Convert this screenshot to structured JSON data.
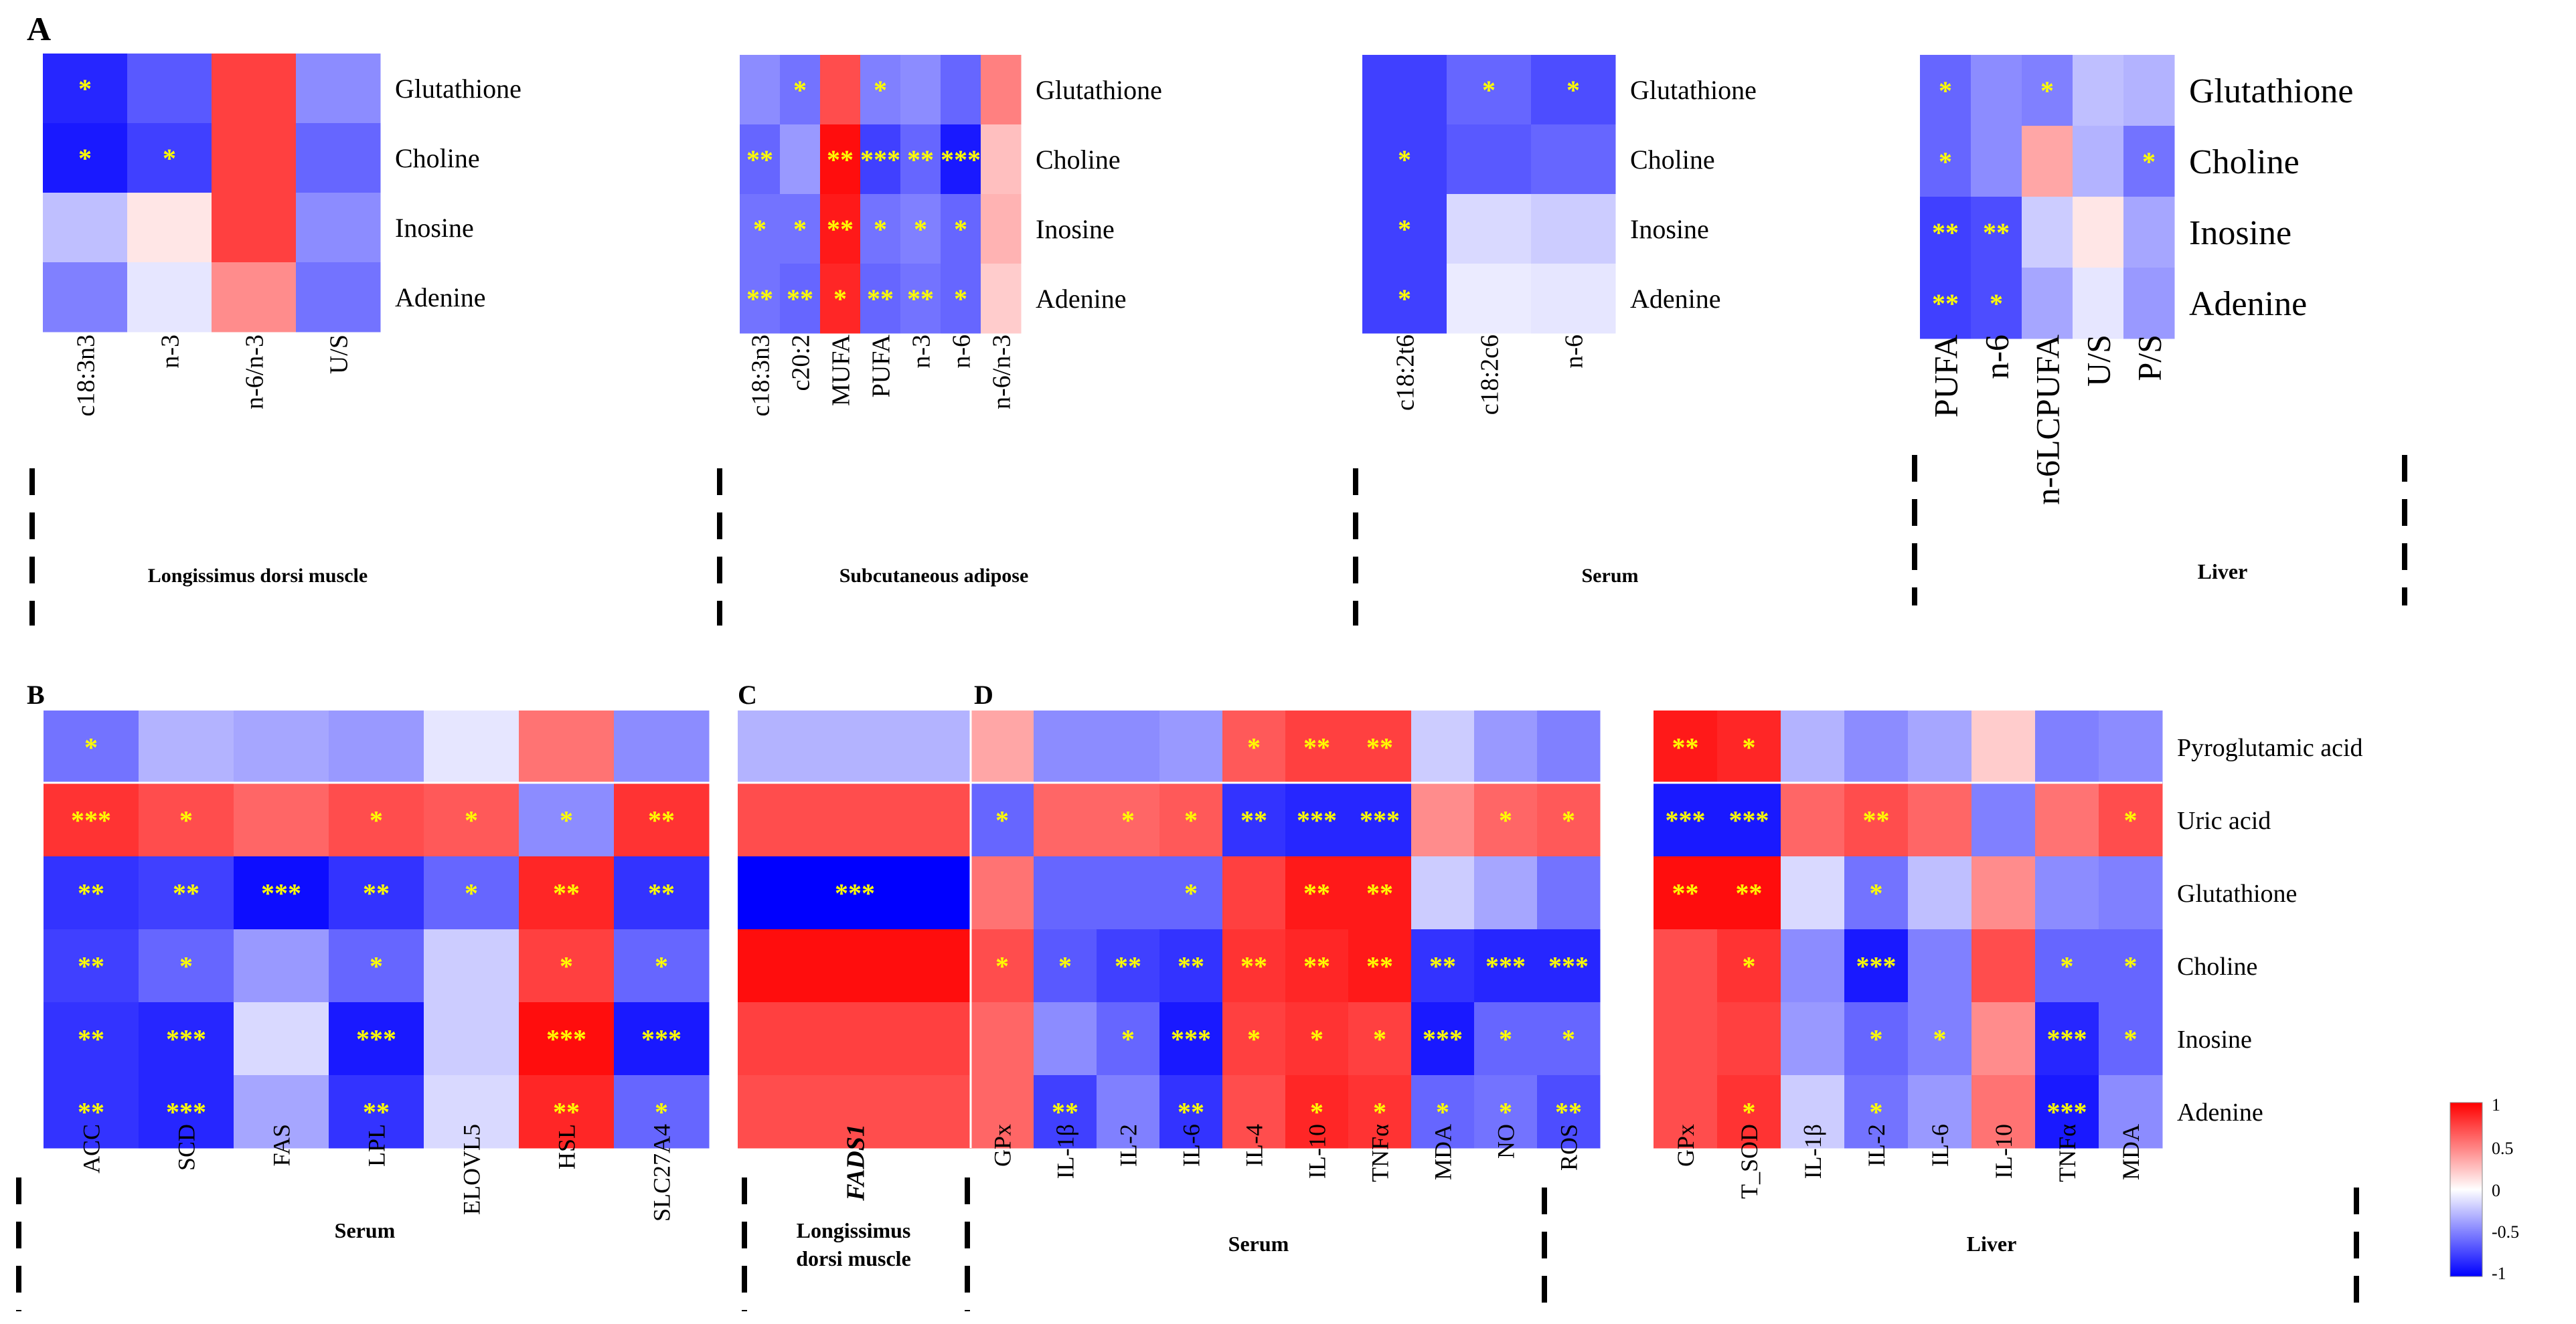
{
  "panel_letters": {
    "A": "A",
    "B": "B",
    "C": "C",
    "D": "D"
  },
  "colorbar": {
    "ticks": [
      "1",
      "0.5",
      "0",
      "-0.5",
      "-1"
    ],
    "colors": {
      "high": "#ff0000",
      "mid": "#ffffff",
      "low": "#0000ff"
    }
  },
  "star_color": "#ffff00",
  "chart_data": [
    {
      "type": "heatmap",
      "id": "A1",
      "tissue_label": "Longissimus dorsi muscle",
      "rows": [
        "Glutathione",
        "Choline",
        "Inosine",
        "Adenine"
      ],
      "columns": [
        "c18:3n3",
        "n-3",
        "n-6/n-3",
        "U/S"
      ],
      "values": [
        [
          -0.85,
          -0.65,
          0.75,
          -0.45
        ],
        [
          -0.9,
          -0.75,
          0.75,
          -0.6
        ],
        [
          -0.25,
          0.1,
          0.75,
          -0.45
        ],
        [
          -0.5,
          -0.1,
          0.45,
          -0.55
        ]
      ],
      "significance": [
        [
          "*",
          "",
          "",
          ""
        ],
        [
          "*",
          "*",
          "",
          ""
        ],
        [
          "",
          "",
          "",
          ""
        ],
        [
          "",
          "",
          "",
          ""
        ]
      ],
      "color_range": [
        -1,
        1
      ]
    },
    {
      "type": "heatmap",
      "id": "A2",
      "tissue_label": "Subcutaneous adipose",
      "rows": [
        "Glutathione",
        "Choline",
        "Inosine",
        "Adenine"
      ],
      "columns": [
        "c18:3n3",
        "c20:2",
        "MUFA",
        "PUFA",
        "n-3",
        "n-6",
        "n-6/n-3"
      ],
      "values": [
        [
          -0.45,
          -0.55,
          0.7,
          -0.5,
          -0.45,
          -0.6,
          0.5
        ],
        [
          -0.6,
          -0.4,
          0.95,
          -0.75,
          -0.6,
          -0.9,
          0.25
        ],
        [
          -0.55,
          -0.55,
          0.9,
          -0.55,
          -0.5,
          -0.6,
          0.3
        ],
        [
          -0.55,
          -0.6,
          0.85,
          -0.6,
          -0.55,
          -0.6,
          0.2
        ]
      ],
      "significance": [
        [
          "",
          "*",
          "",
          "*",
          "",
          "",
          ""
        ],
        [
          "**",
          "",
          "**",
          "***",
          "**",
          "***",
          ""
        ],
        [
          "*",
          "*",
          "**",
          "*",
          "*",
          "*",
          ""
        ],
        [
          "**",
          "**",
          "*",
          "**",
          "**",
          "*",
          ""
        ]
      ],
      "color_range": [
        -1,
        1
      ]
    },
    {
      "type": "heatmap",
      "id": "A3",
      "tissue_label": "Serum",
      "rows": [
        "Glutathione",
        "Choline",
        "Inosine",
        "Adenine"
      ],
      "columns": [
        "c18:2t6",
        "c18:2c6",
        "n-6"
      ],
      "values": [
        [
          -0.75,
          -0.6,
          -0.7
        ],
        [
          -0.75,
          -0.65,
          -0.6
        ],
        [
          -0.75,
          -0.15,
          -0.2
        ],
        [
          -0.75,
          -0.08,
          -0.1
        ]
      ],
      "significance": [
        [
          "",
          "*",
          "*"
        ],
        [
          "*",
          "",
          ""
        ],
        [
          "*",
          "",
          ""
        ],
        [
          "*",
          "",
          ""
        ]
      ],
      "color_range": [
        -1,
        1
      ]
    },
    {
      "type": "heatmap",
      "id": "A4",
      "tissue_label": "Liver",
      "rows": [
        "Glutathione",
        "Choline",
        "Inosine",
        "Adenine"
      ],
      "columns": [
        "PUFA",
        "n-6",
        "n-6LCPUFA",
        "U/S",
        "P/S"
      ],
      "values": [
        [
          -0.6,
          -0.45,
          -0.5,
          -0.25,
          -0.3
        ],
        [
          -0.6,
          -0.45,
          0.35,
          -0.3,
          -0.55
        ],
        [
          -0.75,
          -0.7,
          -0.2,
          0.1,
          -0.35
        ],
        [
          -0.75,
          -0.7,
          -0.35,
          -0.1,
          -0.4
        ]
      ],
      "significance": [
        [
          "*",
          "",
          "*",
          "",
          ""
        ],
        [
          "*",
          "",
          "",
          "",
          "*"
        ],
        [
          "**",
          "**",
          "",
          "",
          ""
        ],
        [
          "**",
          "*",
          "",
          "",
          ""
        ]
      ],
      "color_range": [
        -1,
        1
      ]
    },
    {
      "type": "heatmap",
      "id": "B",
      "tissue_label": "Serum",
      "rows": [
        "Pyroglutamic acid",
        "Uric acid",
        "Glutathione",
        "Choline",
        "Inosine",
        "Adenine"
      ],
      "columns": [
        "ACC",
        "SCD",
        "FAS",
        "LPL",
        "ELOVL5",
        "HSL",
        "SLC27A4"
      ],
      "values": [
        [
          -0.55,
          -0.3,
          -0.35,
          -0.4,
          -0.1,
          0.55,
          -0.45
        ],
        [
          0.8,
          0.7,
          0.6,
          0.7,
          0.65,
          -0.45,
          0.8
        ],
        [
          -0.8,
          -0.75,
          -0.95,
          -0.8,
          -0.6,
          0.85,
          -0.8
        ],
        [
          -0.75,
          -0.6,
          -0.4,
          -0.6,
          -0.2,
          0.75,
          -0.6
        ],
        [
          -0.8,
          -0.85,
          -0.15,
          -0.9,
          -0.2,
          0.95,
          -0.9
        ],
        [
          -0.8,
          -0.85,
          -0.35,
          -0.8,
          -0.15,
          0.85,
          -0.6
        ]
      ],
      "significance": [
        [
          "*",
          "",
          "",
          "",
          "",
          "",
          ""
        ],
        [
          "***",
          "*",
          "",
          "*",
          "*",
          "*",
          "**"
        ],
        [
          "**",
          "**",
          "***",
          "**",
          "*",
          "**",
          "**"
        ],
        [
          "**",
          "*",
          "",
          "*",
          "",
          "*",
          "*"
        ],
        [
          "**",
          "***",
          "",
          "***",
          "",
          "***",
          "***"
        ],
        [
          "**",
          "***",
          "",
          "**",
          "",
          "**",
          "*"
        ]
      ],
      "color_range": [
        -1,
        1
      ]
    },
    {
      "type": "heatmap",
      "id": "C",
      "tissue_label": "Longissimus\ndorsi muscle",
      "rows": [
        "Pyroglutamic acid",
        "Uric acid",
        "Glutathione",
        "Choline",
        "Inosine",
        "Adenine"
      ],
      "columns": [
        "FADS1"
      ],
      "values": [
        [
          -0.3
        ],
        [
          0.7
        ],
        [
          -1.0
        ],
        [
          0.95
        ],
        [
          0.75
        ],
        [
          0.7
        ]
      ],
      "significance": [
        [
          ""
        ],
        [
          ""
        ],
        [
          "***"
        ],
        [
          ""
        ],
        [
          ""
        ],
        [
          ""
        ]
      ],
      "color_range": [
        -1,
        1
      ]
    },
    {
      "type": "heatmap",
      "id": "D1",
      "tissue_label": "Serum",
      "rows": [
        "Pyroglutamic acid",
        "Uric acid",
        "Glutathione",
        "Choline",
        "Inosine",
        "Adenine"
      ],
      "columns": [
        "GPx",
        "IL-1β",
        "IL-2",
        "IL-6",
        "IL-4",
        "IL-10",
        "TNFα",
        "MDA",
        "NO",
        "ROS"
      ],
      "values": [
        [
          0.35,
          -0.45,
          -0.45,
          -0.4,
          0.65,
          0.75,
          0.75,
          -0.2,
          -0.4,
          -0.5
        ],
        [
          -0.6,
          0.6,
          0.6,
          0.65,
          -0.8,
          -0.85,
          -0.85,
          0.45,
          0.6,
          0.65
        ],
        [
          0.55,
          -0.6,
          -0.6,
          -0.6,
          0.75,
          0.9,
          0.9,
          -0.2,
          -0.35,
          -0.55
        ],
        [
          0.7,
          -0.65,
          -0.75,
          -0.8,
          0.8,
          0.85,
          0.9,
          -0.8,
          -0.85,
          -0.85
        ],
        [
          0.6,
          -0.45,
          -0.6,
          -0.9,
          0.75,
          0.8,
          0.75,
          -0.9,
          -0.6,
          -0.6
        ],
        [
          0.6,
          -0.75,
          -0.5,
          -0.8,
          0.7,
          0.85,
          0.8,
          -0.6,
          -0.55,
          -0.7
        ]
      ],
      "significance": [
        [
          "",
          "",
          "",
          "",
          "*",
          "**",
          "**",
          "",
          "",
          ""
        ],
        [
          "*",
          "",
          "*",
          "*",
          "**",
          "***",
          "***",
          "",
          "*",
          "*"
        ],
        [
          "",
          "",
          "",
          "*",
          "",
          "**",
          "**",
          "",
          "",
          ""
        ],
        [
          "*",
          "*",
          "**",
          "**",
          "**",
          "**",
          "**",
          "**",
          "***",
          "***"
        ],
        [
          "",
          "",
          "*",
          "***",
          "*",
          "*",
          "*",
          "***",
          "*",
          "*"
        ],
        [
          "",
          "**",
          "",
          "**",
          "",
          "*",
          "*",
          "*",
          "*",
          "**"
        ]
      ],
      "color_range": [
        -1,
        1
      ]
    },
    {
      "type": "heatmap",
      "id": "D2",
      "tissue_label": "Liver",
      "rows": [
        "Pyroglutamic acid",
        "Uric acid",
        "Glutathione",
        "Choline",
        "Inosine",
        "Adenine"
      ],
      "columns": [
        "GPx",
        "T_SOD",
        "IL-1β",
        "IL-2",
        "IL-6",
        "IL-10",
        "TNFα",
        "MDA"
      ],
      "values": [
        [
          0.9,
          0.85,
          -0.3,
          -0.45,
          -0.35,
          0.2,
          -0.5,
          -0.45
        ],
        [
          -0.9,
          -0.9,
          0.6,
          0.7,
          0.6,
          -0.5,
          0.55,
          0.7
        ],
        [
          0.95,
          0.95,
          -0.15,
          -0.55,
          -0.25,
          0.45,
          -0.45,
          -0.5
        ],
        [
          0.7,
          0.8,
          -0.45,
          -0.9,
          -0.5,
          0.7,
          -0.6,
          -0.6
        ],
        [
          0.7,
          0.75,
          -0.4,
          -0.6,
          -0.5,
          0.45,
          -0.85,
          -0.6
        ],
        [
          0.7,
          0.8,
          -0.2,
          -0.55,
          -0.4,
          0.55,
          -0.9,
          -0.45
        ]
      ],
      "significance": [
        [
          "**",
          "*",
          "",
          "",
          "",
          "",
          "",
          ""
        ],
        [
          "***",
          "***",
          "",
          "**",
          "",
          "",
          "",
          "*"
        ],
        [
          "**",
          "**",
          "",
          "*",
          "",
          "",
          "",
          ""
        ],
        [
          "",
          "*",
          "",
          "***",
          "",
          "",
          "*",
          "*"
        ],
        [
          "",
          "",
          "",
          "*",
          "*",
          "",
          "***",
          "*"
        ],
        [
          "",
          "*",
          "",
          "*",
          "",
          "",
          "***",
          ""
        ]
      ],
      "color_range": [
        -1,
        1
      ]
    }
  ]
}
